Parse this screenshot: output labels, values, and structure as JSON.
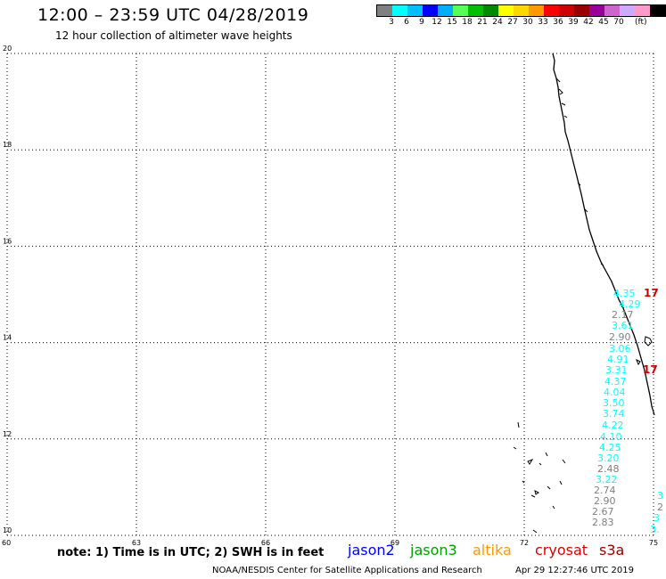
{
  "header": {
    "title": "12:00 – 23:59 UTC 04/28/2019",
    "subtitle": "12 hour collection of altimeter wave heights"
  },
  "legend": {
    "unit": "(ft)",
    "colors": [
      "#808080",
      "#00ffff",
      "#00bfff",
      "#0000ff",
      "#00b0ff",
      "#55ff55",
      "#00c000",
      "#008800",
      "#ffff00",
      "#ffd700",
      "#ff9900",
      "#ff0000",
      "#d00000",
      "#990000",
      "#990099",
      "#cc66cc",
      "#ccaaff",
      "#ff99cc",
      "#000000"
    ],
    "labels": [
      "3",
      "6",
      "9",
      "12",
      "15",
      "18",
      "21",
      "24",
      "27",
      "30",
      "33",
      "36",
      "39",
      "42",
      "45",
      "70"
    ]
  },
  "axes": {
    "x_labels": [
      "60",
      "63",
      "66",
      "69",
      "72",
      "75"
    ],
    "y_labels": [
      "20",
      "18",
      "16",
      "14",
      "12",
      "10"
    ]
  },
  "observations": [
    {
      "text": "4.35",
      "color": "#00ffff"
    },
    {
      "text": "4.29",
      "color": "#00ffff"
    },
    {
      "text": "2.17",
      "color": "#808080"
    },
    {
      "text": "3.61",
      "color": "#00ffff"
    },
    {
      "text": "2.90",
      "color": "#808080"
    },
    {
      "text": "3.06",
      "color": "#00ffff"
    },
    {
      "text": "4.91",
      "color": "#00ffff"
    },
    {
      "text": "3.31",
      "color": "#00ffff"
    },
    {
      "text": "4.37",
      "color": "#00ffff"
    },
    {
      "text": "4.04",
      "color": "#00ffff"
    },
    {
      "text": "3.50",
      "color": "#00ffff"
    },
    {
      "text": "3.74",
      "color": "#00ffff"
    },
    {
      "text": "4.22",
      "color": "#00ffff"
    },
    {
      "text": "4.10",
      "color": "#00ffff"
    },
    {
      "text": "4.25",
      "color": "#00ffff"
    },
    {
      "text": "3.20",
      "color": "#00ffff"
    },
    {
      "text": "2.48",
      "color": "#808080"
    },
    {
      "text": "3.22",
      "color": "#00ffff"
    },
    {
      "text": "2.74",
      "color": "#808080"
    },
    {
      "text": "2.90",
      "color": "#808080"
    },
    {
      "text": "2.67",
      "color": "#808080"
    },
    {
      "text": "2.83",
      "color": "#808080"
    },
    {
      "text": "17",
      "color": "#cc0000"
    },
    {
      "text": "17",
      "color": "#cc0000"
    },
    {
      "text": "3",
      "color": "#00ffff"
    },
    {
      "text": "2",
      "color": "#808080"
    },
    {
      "text": "3",
      "color": "#00ffff"
    },
    {
      "text": "3.",
      "color": "#00ffff"
    }
  ],
  "footer": {
    "note": "note: 1) Time is in UTC; 2) SWH is in feet",
    "satellites": [
      {
        "name": "jason2",
        "color": "#0000ff"
      },
      {
        "name": "jason3",
        "color": "#00a000"
      },
      {
        "name": "altika",
        "color": "#ff9900"
      },
      {
        "name": "cryosat",
        "color": "#dd0000"
      },
      {
        "name": "s3a",
        "color": "#990000"
      }
    ],
    "credit": "NOAA/NESDIS Center for Satellite Applications and Research",
    "timestamp": "Apr 29 12:27:46 UTC 2019"
  }
}
